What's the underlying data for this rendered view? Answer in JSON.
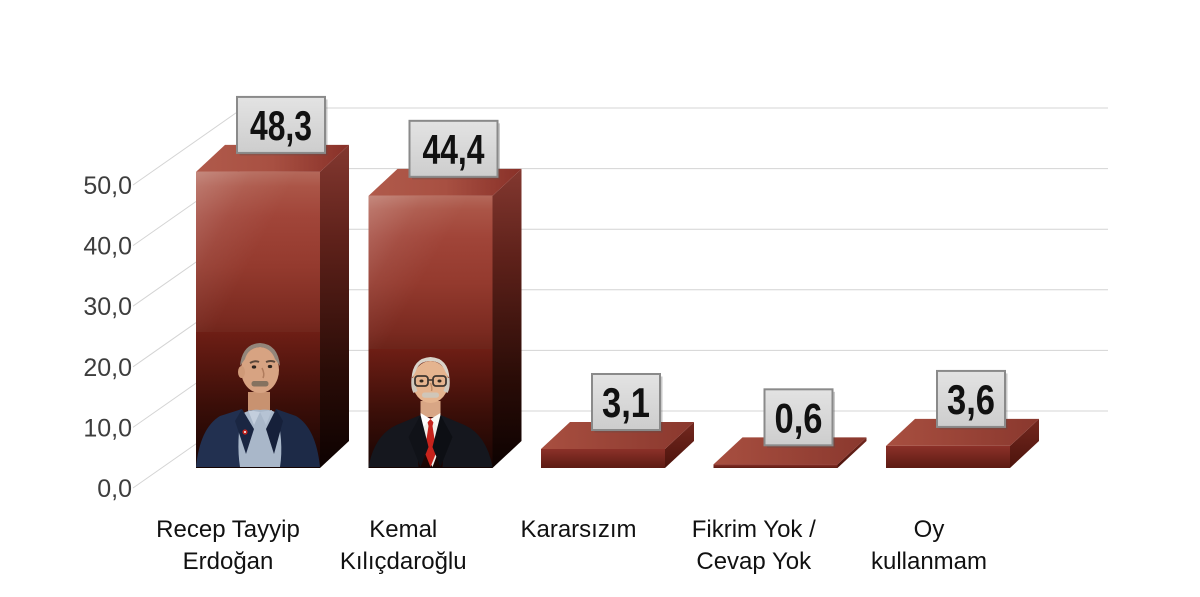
{
  "chart_data": {
    "type": "bar",
    "style": "3d-perspective",
    "title": "",
    "xlabel": "",
    "ylabel": "",
    "categories": [
      "Recep Tayyip Erdoğan",
      "Kemal Kılıçdaroğlu",
      "Kararsızım",
      "Fikrim Yok / Cevap Yok",
      "Oy kullanmam"
    ],
    "category_label_lines": [
      [
        "Recep Tayyip",
        "Erdoğan"
      ],
      [
        "Kemal",
        "Kılıçdaroğlu"
      ],
      [
        "Kararsızım"
      ],
      [
        "Fikrim Yok /",
        "Cevap Yok"
      ],
      [
        "Oy",
        "kullanmam"
      ]
    ],
    "values": [
      48.3,
      44.4,
      3.1,
      0.6,
      3.6
    ],
    "data_labels": [
      "48,3",
      "44,4",
      "3,1",
      "0,6",
      "3,6"
    ],
    "portraits": [
      "erdogan",
      "kilicdaroglu",
      null,
      null,
      null
    ],
    "y_ticks": [
      {
        "value": 0,
        "label": "0,0"
      },
      {
        "value": 10,
        "label": "10,0"
      },
      {
        "value": 20,
        "label": "20,0"
      },
      {
        "value": 30,
        "label": "30,0"
      },
      {
        "value": 40,
        "label": "40,0"
      },
      {
        "value": 50,
        "label": "50,0"
      }
    ],
    "ylim": [
      0,
      50
    ],
    "grid": true,
    "legend": false,
    "colors": {
      "bar_top": "#a85042",
      "bar_front_light": "#b4685a",
      "bar_front_dark": "#150402",
      "bar_side": "#7a2e26",
      "label_box_bg": "#d9d9d9",
      "label_box_border": "#8a8a8a",
      "label_text": "#111111",
      "grid_line": "#d4d4d4",
      "axis_text": "#3d3d3d",
      "category_text": "#111111"
    }
  }
}
